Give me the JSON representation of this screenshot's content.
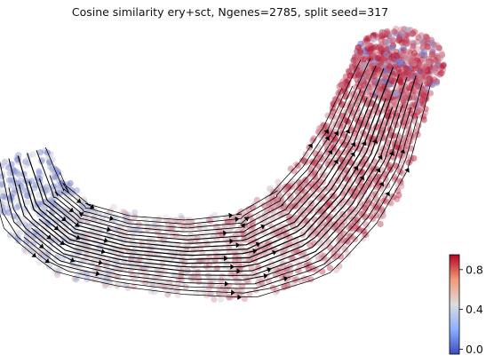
{
  "chart_data": {
    "type": "scatter",
    "title": "Cosine similarity ery+sct, Ngenes=2785, split seed=317",
    "xlabel": "",
    "ylabel": "",
    "axes_visible": false,
    "grid": false,
    "overlay": "velocity stream lines with arrowheads",
    "colorbar": {
      "colormap": "coolwarm",
      "range": [
        -0.05,
        0.95
      ],
      "ticks": [
        0.0,
        0.4,
        0.8
      ],
      "tick_labels": [
        "0.0",
        "0.4",
        "0.8"
      ],
      "placement": "bottom-right"
    },
    "point_color_trend": {
      "description": "similarity rises from left arm (~0.2-0.4) to right arm (~0.8-0.9); tip has mixed values",
      "colors": {
        "low": "#3b4cc0",
        "mid": "#dddddd",
        "high": "#b40426"
      }
    }
  }
}
